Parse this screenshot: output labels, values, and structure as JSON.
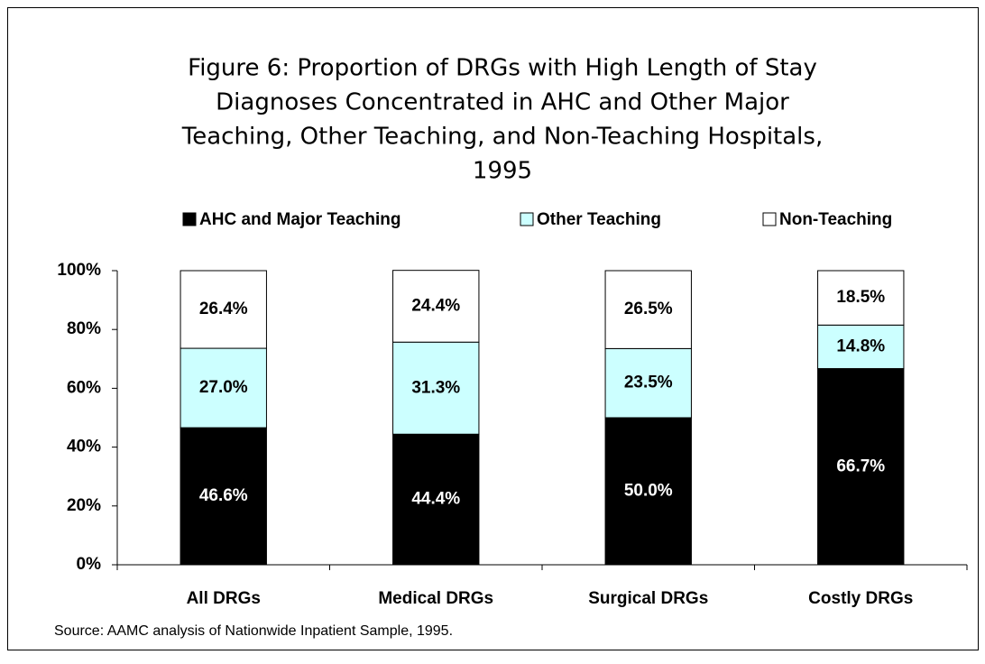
{
  "chart_data": {
    "type": "stacked_bar",
    "title": [
      "Figure 6: Proportion of DRGs with High Length of Stay",
      "Diagnoses Concentrated in AHC and Other Major",
      "Teaching, Other Teaching, and Non-Teaching Hospitals,",
      "1995"
    ],
    "categories": [
      "All DRGs",
      "Medical DRGs",
      "Surgical DRGs",
      "Costly DRGs"
    ],
    "series": [
      {
        "name": "AHC and Major Teaching",
        "color": "#000000",
        "values": [
          46.6,
          44.4,
          50.0,
          66.7
        ],
        "value_labels": [
          "46.6%",
          "44.4%",
          "50.0%",
          "66.7%"
        ]
      },
      {
        "name": "Other Teaching",
        "color": "#ccffff",
        "values": [
          27.0,
          31.3,
          23.5,
          14.8
        ],
        "value_labels": [
          "27.0%",
          "31.3%",
          "23.5%",
          "14.8%"
        ]
      },
      {
        "name": "Non-Teaching",
        "color": "#ffffff",
        "values": [
          26.4,
          24.4,
          26.5,
          18.5
        ],
        "value_labels": [
          "26.4%",
          "24.4%",
          "26.5%",
          "18.5%"
        ]
      }
    ],
    "ylim": [
      0,
      100
    ],
    "yticks": [
      {
        "value": 0,
        "label": "0%"
      },
      {
        "value": 20,
        "label": "20%"
      },
      {
        "value": 40,
        "label": "40%"
      },
      {
        "value": 60,
        "label": "60%"
      },
      {
        "value": 80,
        "label": "80%"
      },
      {
        "value": 100,
        "label": "100%"
      }
    ],
    "legend": "top",
    "source": "Source:  AAMC analysis of Nationwide Inpatient Sample, 1995."
  }
}
